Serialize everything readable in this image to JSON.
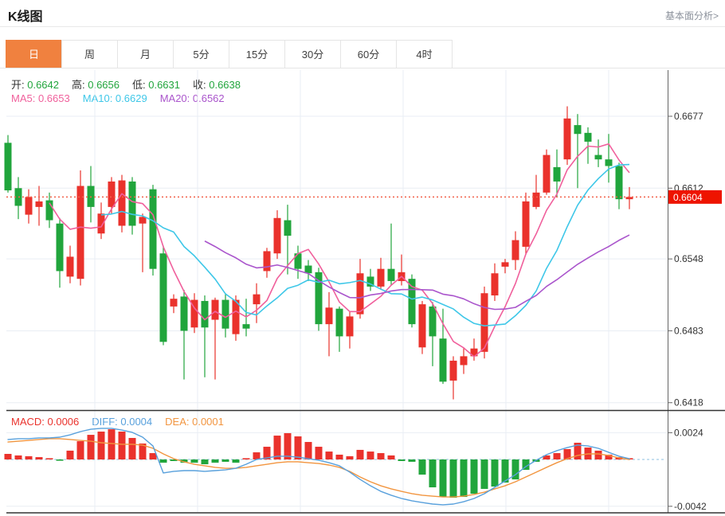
{
  "header": {
    "title": "K线图",
    "link": "基本面分析>"
  },
  "tabs": {
    "items": [
      "日",
      "周",
      "月",
      "5分",
      "15分",
      "30分",
      "60分",
      "4时"
    ],
    "selected": 0
  },
  "ohlc_readout": {
    "value_color": "#21a53c",
    "items": [
      {
        "label": "开:",
        "value": "0.6642"
      },
      {
        "label": "高:",
        "value": "0.6656"
      },
      {
        "label": "低:",
        "value": "0.6631"
      },
      {
        "label": "收:",
        "value": "0.6638"
      }
    ]
  },
  "ma_readout": {
    "items": [
      {
        "label": "MA5:",
        "value": "0.6653",
        "color": "#f0609c"
      },
      {
        "label": "MA10:",
        "value": "0.6629",
        "color": "#3ec7e8"
      },
      {
        "label": "MA20:",
        "value": "0.6562",
        "color": "#aa55cc"
      }
    ]
  },
  "macd_readout": {
    "items": [
      {
        "label": "MACD:",
        "value": "0.0006",
        "color": "#ea322c"
      },
      {
        "label": "DIFF:",
        "value": "0.0004",
        "color": "#58a0dc"
      },
      {
        "label": "DEA:",
        "value": "0.0001",
        "color": "#f2953f"
      }
    ]
  },
  "chart_data": {
    "type": "candlestick+macd",
    "title": "K线图 daily candles with MA5/MA10/MA20 and MACD",
    "price_axis": {
      "ticks": [
        0.6677,
        0.6612,
        0.6548,
        0.6483,
        0.6418
      ],
      "current_price": 0.6604
    },
    "macd_axis": {
      "ticks": [
        0.0024,
        -0.0042
      ]
    },
    "ma_periods": [
      5,
      10,
      20
    ],
    "grid": "on",
    "candles_ohlc": [
      [
        0.6653,
        0.666,
        0.6608,
        0.661
      ],
      [
        0.6612,
        0.6622,
        0.6584,
        0.6596
      ],
      [
        0.6588,
        0.6611,
        0.658,
        0.6604
      ],
      [
        0.6595,
        0.6614,
        0.6578,
        0.66
      ],
      [
        0.6601,
        0.6608,
        0.6576,
        0.6583
      ],
      [
        0.658,
        0.6585,
        0.6522,
        0.6537
      ],
      [
        0.6532,
        0.656,
        0.6526,
        0.655
      ],
      [
        0.653,
        0.6628,
        0.6524,
        0.6614
      ],
      [
        0.6614,
        0.6632,
        0.6581,
        0.6595
      ],
      [
        0.6571,
        0.6599,
        0.6566,
        0.6589
      ],
      [
        0.6595,
        0.6622,
        0.6589,
        0.6618
      ],
      [
        0.6578,
        0.6624,
        0.6572,
        0.6619
      ],
      [
        0.6618,
        0.6622,
        0.657,
        0.6578
      ],
      [
        0.658,
        0.6589,
        0.6536,
        0.6586
      ],
      [
        0.6611,
        0.6615,
        0.6533,
        0.6539
      ],
      [
        0.6553,
        0.656,
        0.647,
        0.6473
      ],
      [
        0.6505,
        0.6516,
        0.6499,
        0.6512
      ],
      [
        0.6514,
        0.652,
        0.6439,
        0.6483
      ],
      [
        0.6486,
        0.6517,
        0.6481,
        0.6511
      ],
      [
        0.651,
        0.6515,
        0.6441,
        0.6486
      ],
      [
        0.6493,
        0.6513,
        0.6439,
        0.6511
      ],
      [
        0.6511,
        0.6517,
        0.6477,
        0.6485
      ],
      [
        0.648,
        0.6515,
        0.6474,
        0.6511
      ],
      [
        0.6489,
        0.6512,
        0.6478,
        0.6485
      ],
      [
        0.6507,
        0.6526,
        0.649,
        0.6516
      ],
      [
        0.6537,
        0.6558,
        0.6531,
        0.6555
      ],
      [
        0.6553,
        0.6592,
        0.6548,
        0.6585
      ],
      [
        0.6583,
        0.6597,
        0.6534,
        0.6569
      ],
      [
        0.6553,
        0.656,
        0.653,
        0.6539
      ],
      [
        0.6542,
        0.6547,
        0.6528,
        0.6535
      ],
      [
        0.6536,
        0.654,
        0.6483,
        0.6489
      ],
      [
        0.6489,
        0.6518,
        0.646,
        0.6504
      ],
      [
        0.6503,
        0.6505,
        0.6464,
        0.6478
      ],
      [
        0.6478,
        0.65,
        0.6467,
        0.6496
      ],
      [
        0.6498,
        0.6548,
        0.6494,
        0.6535
      ],
      [
        0.6532,
        0.6539,
        0.6519,
        0.6523
      ],
      [
        0.6523,
        0.6549,
        0.652,
        0.6539
      ],
      [
        0.6539,
        0.658,
        0.6524,
        0.6528
      ],
      [
        0.6528,
        0.6552,
        0.6524,
        0.6536
      ],
      [
        0.653,
        0.6534,
        0.6486,
        0.6489
      ],
      [
        0.6468,
        0.651,
        0.6462,
        0.6507
      ],
      [
        0.6505,
        0.6509,
        0.6451,
        0.6478
      ],
      [
        0.6476,
        0.6503,
        0.6435,
        0.6437
      ],
      [
        0.6438,
        0.646,
        0.6421,
        0.6456
      ],
      [
        0.6452,
        0.6468,
        0.6444,
        0.646
      ],
      [
        0.646,
        0.6476,
        0.6456,
        0.6467
      ],
      [
        0.6464,
        0.6523,
        0.6458,
        0.6517
      ],
      [
        0.6515,
        0.6544,
        0.651,
        0.6535
      ],
      [
        0.6541,
        0.6548,
        0.6535,
        0.6545
      ],
      [
        0.6547,
        0.6573,
        0.6538,
        0.6565
      ],
      [
        0.6559,
        0.6608,
        0.6552,
        0.66
      ],
      [
        0.6595,
        0.6624,
        0.6593,
        0.6608
      ],
      [
        0.6608,
        0.6647,
        0.6606,
        0.6642
      ],
      [
        0.6631,
        0.6647,
        0.6604,
        0.6618
      ],
      [
        0.6638,
        0.6686,
        0.6633,
        0.6675
      ],
      [
        0.6669,
        0.6679,
        0.6612,
        0.6661
      ],
      [
        0.6662,
        0.6667,
        0.6634,
        0.6654
      ],
      [
        0.6642,
        0.6656,
        0.6631,
        0.6638
      ],
      [
        0.6638,
        0.6661,
        0.6617,
        0.6632
      ],
      [
        0.6632,
        0.6635,
        0.6593,
        0.6602
      ],
      [
        0.6602,
        0.6613,
        0.6593,
        0.6604
      ]
    ],
    "macd": {
      "diff": [
        0.00179,
        0.00186,
        0.00186,
        0.00193,
        0.00193,
        0.002,
        0.00221,
        0.0025,
        0.00271,
        0.00279,
        0.00279,
        0.00264,
        0.00243,
        0.002,
        0.00121,
        -0.00121,
        -0.00107,
        -0.001,
        -0.001,
        -0.00107,
        -0.001,
        -0.00093,
        -0.00079,
        -0.00043,
        0,
        0.00014,
        0.00029,
        0.00029,
        0.00021,
        7e-05,
        -7e-05,
        -0.00029,
        -0.00057,
        -0.00114,
        -0.00179,
        -0.00236,
        -0.00286,
        -0.00321,
        -0.0035,
        -0.00371,
        -0.00386,
        -0.004,
        -0.00407,
        -0.004,
        -0.00379,
        -0.0035,
        -0.00307,
        -0.0025,
        -0.00193,
        -0.00136,
        -0.00064,
        -7e-05,
        0.00043,
        0.00079,
        0.00107,
        0.00129,
        0.00121,
        0.001,
        0.00064,
        0.00029,
        7e-05
      ],
      "dea": [
        0.00157,
        0.00164,
        0.00171,
        0.00179,
        0.00186,
        0.00186,
        0.00179,
        0.00171,
        0.00164,
        0.0015,
        0.00143,
        0.00136,
        0.00136,
        0.00129,
        0.001,
        0.0005,
        7e-05,
        -0.00021,
        -0.00043,
        -0.00057,
        -0.00071,
        -0.00079,
        -0.00079,
        -0.00071,
        -0.00057,
        -0.00043,
        -0.00029,
        -0.00021,
        -0.00021,
        -0.00029,
        -0.00036,
        -0.0005,
        -0.00071,
        -0.00107,
        -0.00157,
        -0.002,
        -0.00236,
        -0.00264,
        -0.00286,
        -0.00307,
        -0.00321,
        -0.00329,
        -0.00336,
        -0.00336,
        -0.00329,
        -0.00314,
        -0.00293,
        -0.00264,
        -0.00236,
        -0.002,
        -0.00157,
        -0.00114,
        -0.00071,
        -0.00029,
        7e-05,
        0.00036,
        0.0005,
        0.0005,
        0.00036,
        0.00014,
        0
      ],
      "hist": [
        0.0005,
        0.00036,
        0.00029,
        0.00021,
        4e-05,
        -7e-05,
        0.00079,
        0.00164,
        0.00221,
        0.0025,
        0.00271,
        0.0025,
        0.00193,
        0.00143,
        0.00057,
        -0.00029,
        -0.00014,
        -0.00029,
        -0.00029,
        -0.00043,
        -0.00029,
        -0.00021,
        -0.00029,
        7e-05,
        0.00064,
        0.00114,
        0.00214,
        0.00236,
        0.00207,
        0.00157,
        0.00114,
        0.00071,
        0.00043,
        0.00029,
        0.00086,
        0.00071,
        0.00057,
        0.00036,
        -0.00014,
        -0.00021,
        -0.00136,
        -0.0025,
        -0.00336,
        -0.00343,
        -0.00336,
        -0.00307,
        -0.00264,
        -0.00243,
        -0.00207,
        -0.00179,
        -0.00093,
        -0.00021,
        0.00036,
        0.00057,
        0.00093,
        0.0015,
        0.00107,
        0.00079,
        0.00043,
        0.00021,
        0.00011
      ]
    },
    "colors": {
      "up_candle": "#ea322c",
      "down_candle": "#21a53c",
      "ma5": "#f0609c",
      "ma10": "#3ec7e8",
      "ma20": "#aa55cc",
      "diff_line": "#58a0dc",
      "dea_line": "#f2953f",
      "current_price_line": "#f2604a",
      "current_price_tag": "#ee1400",
      "grid": "#e9eef4",
      "zero_dash": "#a3cde8",
      "axis_text": "#333333"
    }
  }
}
